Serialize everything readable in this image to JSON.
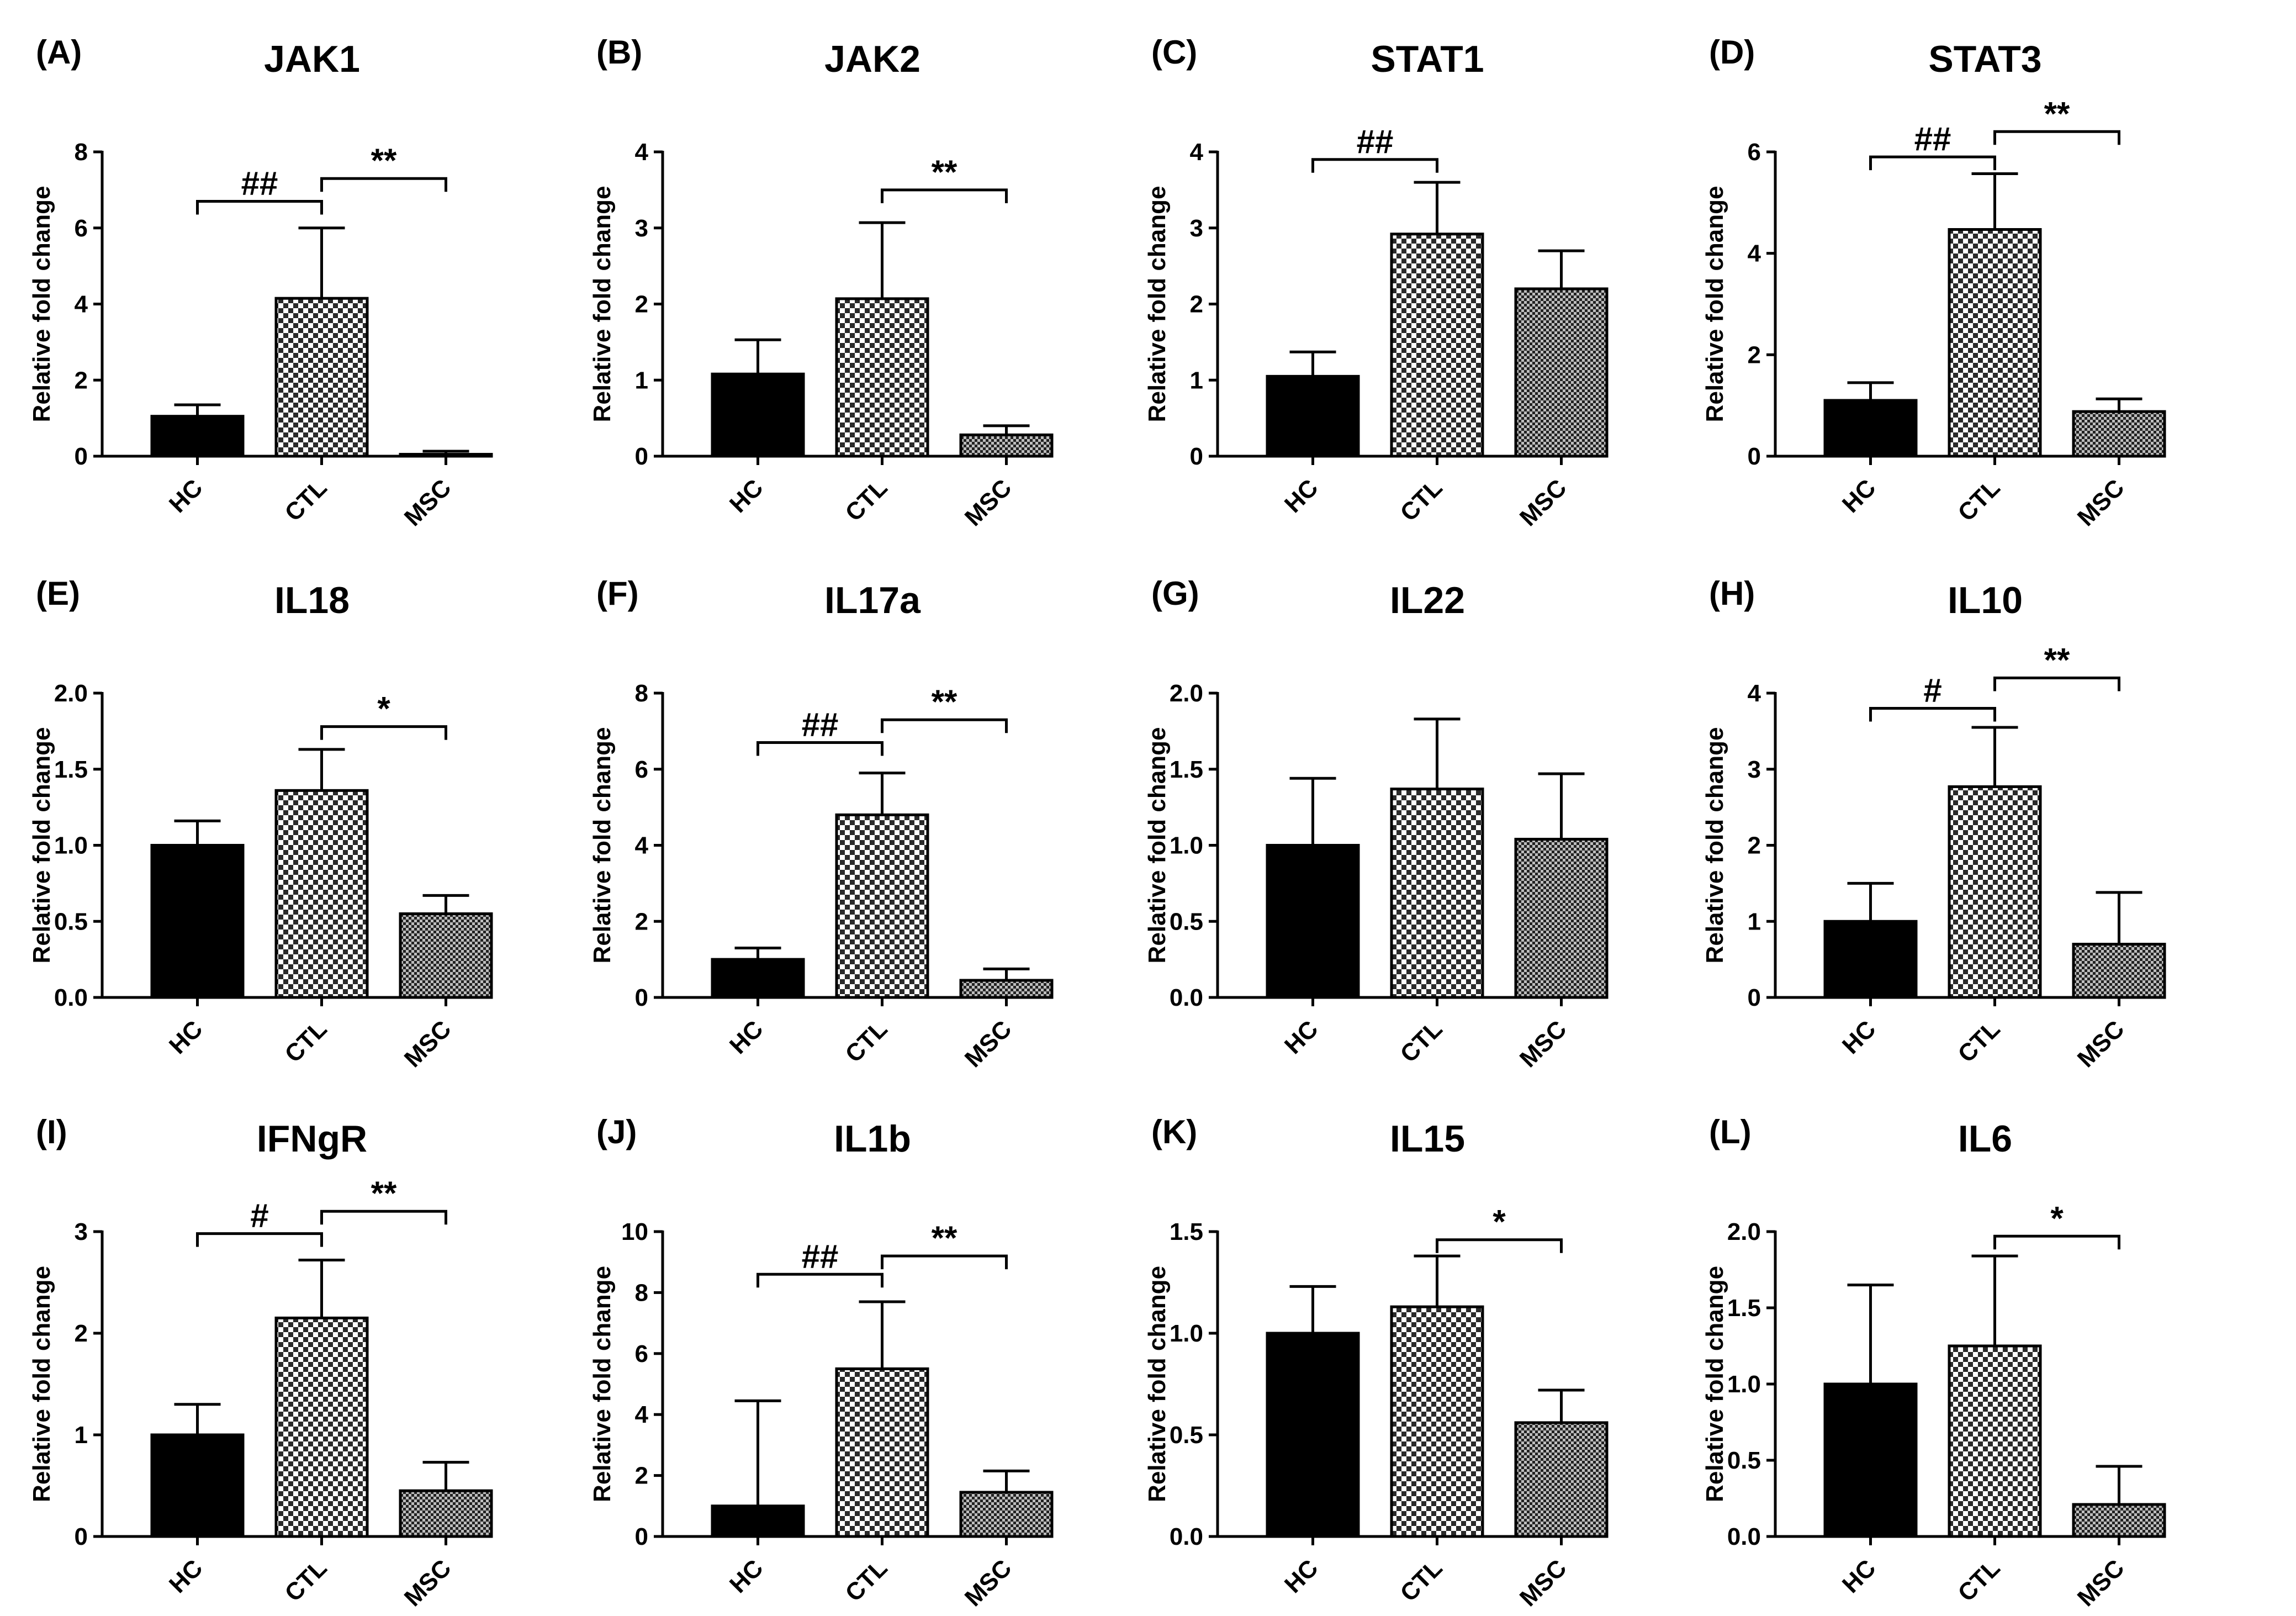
{
  "figure": {
    "group_colors": {
      "HC": "#000000",
      "CTL": "#8a8a8a",
      "MSC": "#5a5a5a"
    },
    "panel_order": [
      "A",
      "B",
      "C",
      "D",
      "E",
      "F",
      "G",
      "H",
      "I",
      "J",
      "K",
      "L"
    ]
  },
  "chart_data": [
    {
      "type": "bar",
      "panel": "(A)",
      "title": "JAK1",
      "ylabel": "Relative fold change",
      "categories": [
        "HC",
        "CTL",
        "MSC"
      ],
      "values": [
        1.05,
        4.15,
        0.05
      ],
      "errors": [
        0.3,
        1.85,
        0.08
      ],
      "ylim": [
        0,
        8
      ],
      "yticks": [
        "0",
        "2",
        "4",
        "6",
        "8"
      ],
      "annotations": [
        {
          "from": 0,
          "to": 1,
          "label": "##",
          "y": 6.7
        },
        {
          "from": 1,
          "to": 2,
          "label": "**",
          "y": 7.3
        }
      ]
    },
    {
      "type": "bar",
      "panel": "(B)",
      "title": "JAK2",
      "ylabel": "Relative fold change",
      "categories": [
        "HC",
        "CTL",
        "MSC"
      ],
      "values": [
        1.08,
        2.07,
        0.28
      ],
      "errors": [
        0.45,
        1.0,
        0.12
      ],
      "ylim": [
        0,
        4
      ],
      "yticks": [
        "0",
        "1",
        "2",
        "3",
        "4"
      ],
      "annotations": [
        {
          "from": 1,
          "to": 2,
          "label": "**",
          "y": 3.5
        }
      ]
    },
    {
      "type": "bar",
      "panel": "(C)",
      "title": "STAT1",
      "ylabel": "Relative fold change",
      "categories": [
        "HC",
        "CTL",
        "MSC"
      ],
      "values": [
        1.05,
        2.92,
        2.2
      ],
      "errors": [
        0.32,
        0.68,
        0.5
      ],
      "ylim": [
        0,
        4
      ],
      "yticks": [
        "0",
        "1",
        "2",
        "3",
        "4"
      ],
      "annotations": [
        {
          "from": 0,
          "to": 1,
          "label": "##",
          "y": 3.9
        }
      ]
    },
    {
      "type": "bar",
      "panel": "(D)",
      "title": "STAT3",
      "ylabel": "Relative fold change",
      "categories": [
        "HC",
        "CTL",
        "MSC"
      ],
      "values": [
        1.1,
        4.47,
        0.88
      ],
      "errors": [
        0.35,
        1.1,
        0.25
      ],
      "ylim": [
        0,
        6
      ],
      "yticks": [
        "0",
        "2",
        "4",
        "6"
      ],
      "annotations": [
        {
          "from": 0,
          "to": 1,
          "label": "##",
          "y": 5.9
        },
        {
          "from": 1,
          "to": 2,
          "label": "**",
          "y": 6.4
        }
      ]
    },
    {
      "type": "bar",
      "panel": "(E)",
      "title": "IL18",
      "ylabel": "Relative fold change",
      "categories": [
        "HC",
        "CTL",
        "MSC"
      ],
      "values": [
        1.0,
        1.36,
        0.55
      ],
      "errors": [
        0.16,
        0.27,
        0.12
      ],
      "ylim": [
        0,
        2.0
      ],
      "yticks": [
        "0.0",
        "0.5",
        "1.0",
        "1.5",
        "2.0"
      ],
      "annotations": [
        {
          "from": 1,
          "to": 2,
          "label": "*",
          "y": 1.78
        }
      ]
    },
    {
      "type": "bar",
      "panel": "(F)",
      "title": "IL17a",
      "ylabel": "Relative fold change",
      "categories": [
        "HC",
        "CTL",
        "MSC"
      ],
      "values": [
        1.0,
        4.8,
        0.45
      ],
      "errors": [
        0.3,
        1.1,
        0.3
      ],
      "ylim": [
        0,
        8
      ],
      "yticks": [
        "0",
        "2",
        "4",
        "6",
        "8"
      ],
      "annotations": [
        {
          "from": 0,
          "to": 1,
          "label": "##",
          "y": 6.7
        },
        {
          "from": 1,
          "to": 2,
          "label": "**",
          "y": 7.3
        }
      ]
    },
    {
      "type": "bar",
      "panel": "(G)",
      "title": "IL22",
      "ylabel": "Relative fold change",
      "categories": [
        "HC",
        "CTL",
        "MSC"
      ],
      "values": [
        1.0,
        1.37,
        1.04
      ],
      "errors": [
        0.44,
        0.46,
        0.43
      ],
      "ylim": [
        0,
        2.0
      ],
      "yticks": [
        "0.0",
        "0.5",
        "1.0",
        "1.5",
        "2.0"
      ],
      "annotations": []
    },
    {
      "type": "bar",
      "panel": "(H)",
      "title": "IL10",
      "ylabel": "Relative fold change",
      "categories": [
        "HC",
        "CTL",
        "MSC"
      ],
      "values": [
        1.0,
        2.77,
        0.7
      ],
      "errors": [
        0.5,
        0.78,
        0.68
      ],
      "ylim": [
        0,
        4
      ],
      "yticks": [
        "0",
        "1",
        "2",
        "3",
        "4"
      ],
      "annotations": [
        {
          "from": 0,
          "to": 1,
          "label": "#",
          "y": 3.8
        },
        {
          "from": 1,
          "to": 2,
          "label": "**",
          "y": 4.2
        }
      ]
    },
    {
      "type": "bar",
      "panel": "(I)",
      "title": "IFNgR",
      "ylabel": "Relative fold change",
      "categories": [
        "HC",
        "CTL",
        "MSC"
      ],
      "values": [
        1.0,
        2.15,
        0.45
      ],
      "errors": [
        0.3,
        0.57,
        0.28
      ],
      "ylim": [
        0,
        3
      ],
      "yticks": [
        "0",
        "1",
        "2",
        "3"
      ],
      "annotations": [
        {
          "from": 0,
          "to": 1,
          "label": "#",
          "y": 2.98
        },
        {
          "from": 1,
          "to": 2,
          "label": "**",
          "y": 3.2
        }
      ]
    },
    {
      "type": "bar",
      "panel": "(J)",
      "title": "IL1b",
      "ylabel": "Relative fold change",
      "categories": [
        "HC",
        "CTL",
        "MSC"
      ],
      "values": [
        1.0,
        5.5,
        1.45
      ],
      "errors": [
        3.45,
        2.2,
        0.7
      ],
      "ylim": [
        0,
        10
      ],
      "yticks": [
        "0",
        "2",
        "4",
        "6",
        "8",
        "10"
      ],
      "annotations": [
        {
          "from": 0,
          "to": 1,
          "label": "##",
          "y": 8.6
        },
        {
          "from": 1,
          "to": 2,
          "label": "**",
          "y": 9.2
        }
      ]
    },
    {
      "type": "bar",
      "panel": "(K)",
      "title": "IL15",
      "ylabel": "Relative fold change",
      "categories": [
        "HC",
        "CTL",
        "MSC"
      ],
      "values": [
        1.0,
        1.13,
        0.56
      ],
      "errors": [
        0.23,
        0.25,
        0.16
      ],
      "ylim": [
        0,
        1.5
      ],
      "yticks": [
        "0.0",
        "0.5",
        "1.0",
        "1.5"
      ],
      "annotations": [
        {
          "from": 1,
          "to": 2,
          "label": "*",
          "y": 1.46
        }
      ]
    },
    {
      "type": "bar",
      "panel": "(L)",
      "title": "IL6",
      "ylabel": "Relative fold change",
      "categories": [
        "HC",
        "CTL",
        "MSC"
      ],
      "values": [
        1.0,
        1.25,
        0.21
      ],
      "errors": [
        0.65,
        0.59,
        0.25
      ],
      "ylim": [
        0,
        2.0
      ],
      "yticks": [
        "0.0",
        "0.5",
        "1.0",
        "1.5",
        "2.0"
      ],
      "annotations": [
        {
          "from": 1,
          "to": 2,
          "label": "*",
          "y": 1.97
        }
      ]
    }
  ]
}
